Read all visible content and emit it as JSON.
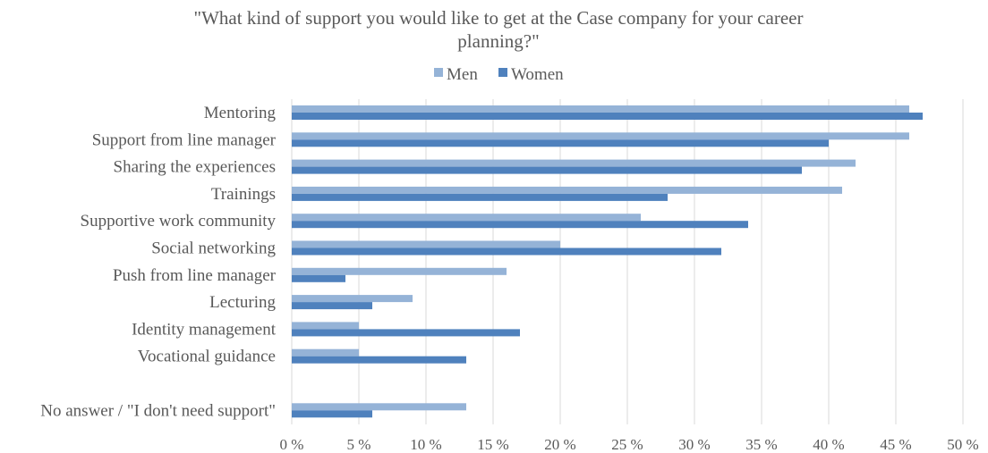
{
  "chart_data": {
    "type": "bar",
    "orientation": "horizontal",
    "title_lines": [
      "\"What kind of support you would like to get at the Case company for your career",
      "planning?\""
    ],
    "legend_position": "top-center",
    "grid": true,
    "categories": [
      "Mentoring",
      "Support from line manager",
      "Sharing the experiences",
      "Trainings",
      "Supportive work community",
      "Social networking",
      "Push from line manager",
      "Lecturing",
      "Identity management",
      "Vocational guidance",
      "",
      "No answer / \"I don't need support\""
    ],
    "series": [
      {
        "name": "Men",
        "color": "#95b3d7",
        "values": [
          46,
          46,
          42,
          41,
          26,
          20,
          16,
          9,
          5,
          5,
          null,
          13
        ]
      },
      {
        "name": "Women",
        "color": "#4f81bd",
        "values": [
          47,
          40,
          38,
          28,
          34,
          32,
          4,
          6,
          17,
          13,
          null,
          6
        ]
      }
    ],
    "x_ticks": [
      0,
      5,
      10,
      15,
      20,
      25,
      30,
      35,
      40,
      45,
      50
    ],
    "x_tick_labels": [
      "0 %",
      "5 %",
      "10 %",
      "15 %",
      "20 %",
      "25 %",
      "30 %",
      "35 %",
      "40 %",
      "45 %",
      "50 %"
    ],
    "xlim": [
      0,
      50
    ],
    "xlabel": "",
    "ylabel": ""
  }
}
